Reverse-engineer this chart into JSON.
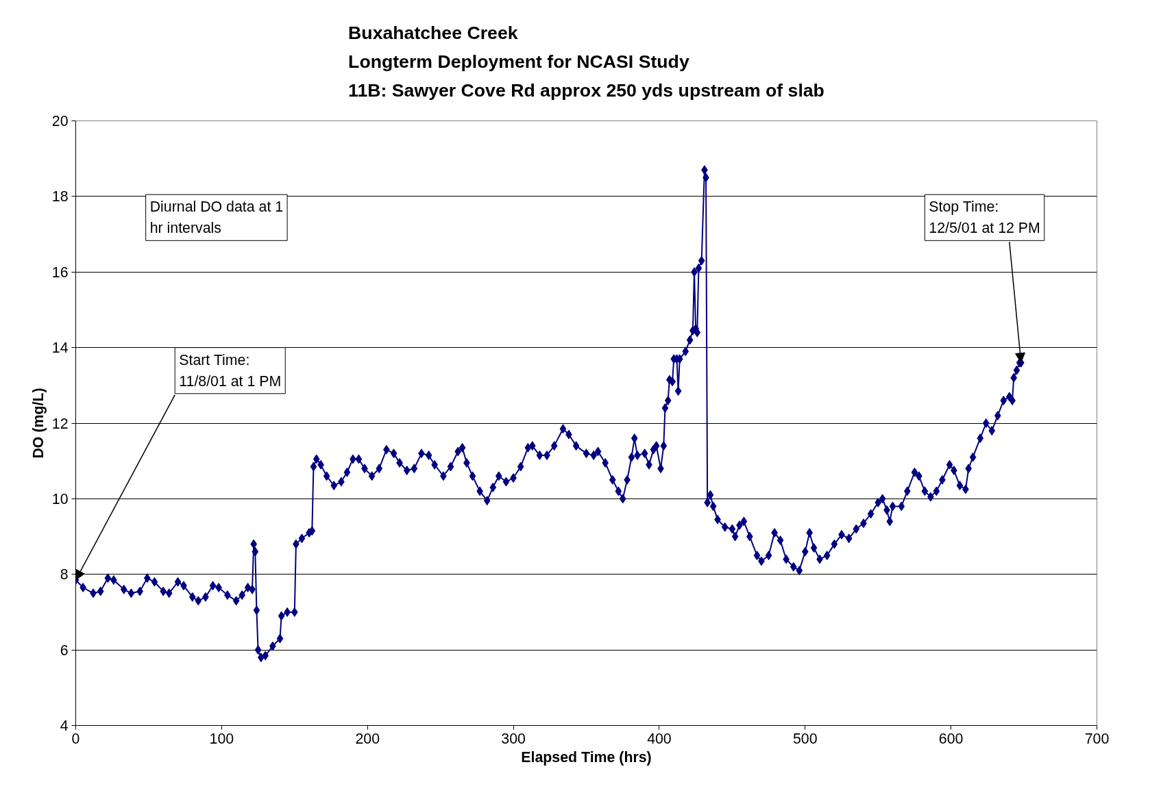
{
  "chart_data": {
    "type": "line",
    "title": "Buxahatchee Creek\nLongterm Deployment for NCASI Study\n11B: Sawyer Cove Rd approx 250 yds upstream of slab",
    "xlabel": "Elapsed Time (hrs)",
    "ylabel": "DO (mg/L)",
    "xlim": [
      0,
      700
    ],
    "xticks": [
      0,
      100,
      200,
      300,
      400,
      500,
      600,
      700
    ],
    "ylim": [
      4,
      20
    ],
    "yticks": [
      4,
      6,
      8,
      10,
      12,
      14,
      16,
      18,
      20
    ],
    "grid": "y",
    "marker": "diamond",
    "line_style": "solid",
    "annotations": [
      "Diurnal DO data at 1 hr intervals",
      {
        "text": "Start Time:\n11/8/01 at 1 PM",
        "x": 0,
        "y": 7.85
      },
      {
        "text": "Stop Time:\n12/5/01 at 12 PM",
        "x": 648,
        "y": 13.6
      }
    ],
    "series": [
      {
        "color": "#000080",
        "x": [
          0,
          5,
          12,
          17,
          22,
          26,
          33,
          38,
          44,
          49,
          54,
          60,
          64,
          70,
          74,
          80,
          84,
          89,
          94,
          98,
          104,
          110,
          114,
          118,
          121,
          122,
          123,
          124,
          125,
          127,
          130,
          135,
          140,
          141,
          145,
          150,
          151,
          155,
          160,
          162,
          163,
          165,
          168,
          172,
          177,
          182,
          186,
          190,
          194,
          198,
          203,
          208,
          213,
          218,
          222,
          227,
          232,
          237,
          242,
          246,
          252,
          257,
          262,
          265,
          268,
          272,
          277,
          282,
          286,
          290,
          295,
          300,
          305,
          310,
          313,
          318,
          323,
          328,
          334,
          338,
          343,
          350,
          355,
          358,
          363,
          368,
          372,
          375,
          378,
          381,
          383,
          385,
          390,
          393,
          396,
          398,
          401,
          403,
          404,
          406,
          407,
          409,
          410,
          412,
          413,
          414,
          418,
          421,
          423,
          424,
          425,
          426,
          427,
          429,
          431,
          432,
          433,
          435,
          437,
          440,
          445,
          450,
          452,
          455,
          458,
          462,
          467,
          470,
          475,
          479,
          483,
          487,
          492,
          496,
          500,
          503,
          506,
          510,
          515,
          520,
          525,
          530,
          535,
          540,
          545,
          550,
          553,
          556,
          558,
          560,
          566,
          570,
          575,
          578,
          582,
          586,
          590,
          594,
          599,
          602,
          606,
          610,
          612,
          615,
          620,
          624,
          628,
          632,
          636,
          640,
          642,
          643,
          645,
          647,
          648
        ],
        "values": [
          7.85,
          7.65,
          7.5,
          7.55,
          7.9,
          7.85,
          7.6,
          7.5,
          7.55,
          7.9,
          7.8,
          7.55,
          7.5,
          7.8,
          7.7,
          7.4,
          7.3,
          7.4,
          7.7,
          7.65,
          7.45,
          7.3,
          7.45,
          7.65,
          7.6,
          8.8,
          8.6,
          7.05,
          6.0,
          5.8,
          5.85,
          6.1,
          6.3,
          6.9,
          7.0,
          7.0,
          8.8,
          8.95,
          9.1,
          9.15,
          10.85,
          11.05,
          10.9,
          10.6,
          10.35,
          10.45,
          10.7,
          11.05,
          11.05,
          10.8,
          10.6,
          10.8,
          11.3,
          11.2,
          10.95,
          10.75,
          10.8,
          11.2,
          11.15,
          10.9,
          10.6,
          10.85,
          11.25,
          11.35,
          10.95,
          10.6,
          10.2,
          9.95,
          10.3,
          10.6,
          10.45,
          10.55,
          10.85,
          11.35,
          11.4,
          11.15,
          11.15,
          11.4,
          11.85,
          11.7,
          11.4,
          11.2,
          11.15,
          11.25,
          10.95,
          10.5,
          10.2,
          10.0,
          10.5,
          11.1,
          11.6,
          11.15,
          11.2,
          10.9,
          11.3,
          11.4,
          10.8,
          11.4,
          12.4,
          12.6,
          13.15,
          13.1,
          13.7,
          13.7,
          12.85,
          13.7,
          13.9,
          14.2,
          14.45,
          16.0,
          14.5,
          14.4,
          16.1,
          16.3,
          18.7,
          18.5,
          9.9,
          10.1,
          9.8,
          9.45,
          9.25,
          9.2,
          9.0,
          9.3,
          9.4,
          9.0,
          8.5,
          8.35,
          8.5,
          9.1,
          8.9,
          8.4,
          8.2,
          8.1,
          8.6,
          9.1,
          8.7,
          8.4,
          8.5,
          8.8,
          9.05,
          8.95,
          9.2,
          9.35,
          9.6,
          9.9,
          10.0,
          9.7,
          9.4,
          9.8,
          9.8,
          10.2,
          10.7,
          10.6,
          10.2,
          10.05,
          10.2,
          10.5,
          10.9,
          10.75,
          10.35,
          10.25,
          10.8,
          11.1,
          11.6,
          12.0,
          11.8,
          12.2,
          12.6,
          12.7,
          12.6,
          13.2,
          13.4,
          13.6,
          13.6
        ]
      }
    ]
  }
}
